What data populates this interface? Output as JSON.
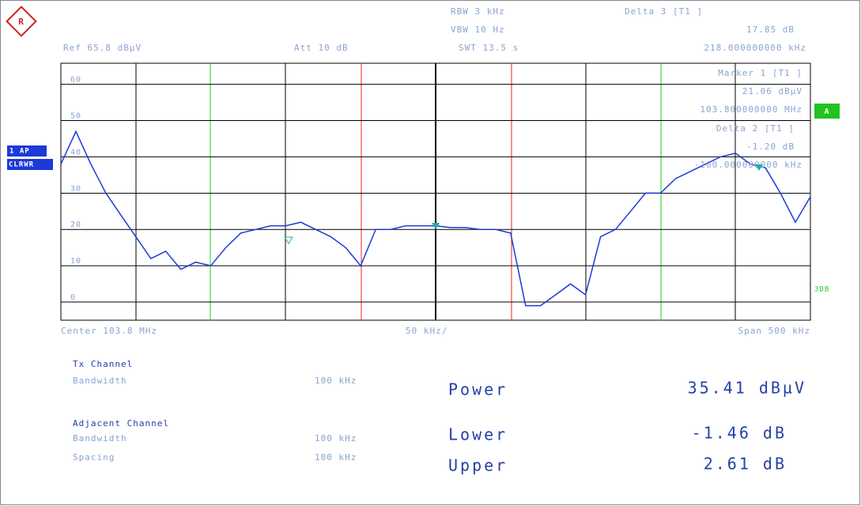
{
  "header": {
    "rbw": "RBW 3 kHz",
    "vbw": "VBW 10 Hz",
    "swt": "SWT 13.5 s",
    "ref": "Ref 65.8 dBµV",
    "att": "Att 10 dB"
  },
  "markers": [
    {
      "label": "Delta 3 [T1 ]",
      "level": "17.85 dB",
      "position": "218.000000000 kHz"
    },
    {
      "label": "Marker 1 [T1 ]",
      "level": "21.06 dBµV",
      "position": "103.800000000 MHz"
    },
    {
      "label": "Delta 2 [T1 ]",
      "level": "-1.20 dB",
      "position": "-100.000000000 kHz"
    }
  ],
  "side": {
    "trace": "1 AP",
    "mode": "CLRWR",
    "a": "A",
    "db3": "3DB"
  },
  "axis": {
    "center": "Center 103.8 MHz",
    "div": "50 kHz/",
    "span": "Span 500 kHz"
  },
  "chart_data": {
    "type": "line",
    "color": "#1c3ad8",
    "x": [
      -250,
      -240,
      -230,
      -220,
      -210,
      -200,
      -190,
      -180,
      -170,
      -160,
      -150,
      -140,
      -130,
      -120,
      -110,
      -100,
      -90,
      -80,
      -70,
      -60,
      -50,
      -40,
      -30,
      -20,
      -10,
      0,
      10,
      20,
      30,
      40,
      50,
      60,
      70,
      80,
      90,
      100,
      110,
      120,
      130,
      140,
      150,
      160,
      170,
      180,
      190,
      200,
      210,
      220,
      230,
      240,
      250
    ],
    "values": [
      38,
      47,
      38,
      30,
      24,
      18,
      12,
      14,
      9,
      11,
      10,
      15,
      19,
      20,
      21,
      21,
      22,
      20,
      18,
      15,
      10,
      20,
      20,
      21,
      21,
      21,
      20.5,
      20.5,
      20,
      20,
      19,
      -1,
      -1,
      2,
      5,
      2,
      18,
      20,
      25,
      30,
      30,
      34,
      36,
      38,
      40,
      41,
      38,
      37,
      30,
      22,
      29
    ],
    "xlim": [
      -250,
      250
    ],
    "ylim": [
      -5,
      65.8
    ],
    "yticks": [
      0,
      10,
      20,
      30,
      40,
      50,
      60
    ],
    "grid": true
  },
  "settings": {
    "tx_title": "Tx Channel",
    "tx_bw_label": "Bandwidth",
    "tx_bw": "100 kHz",
    "adj_title": "Adjacent Channel",
    "adj_bw_label": "Bandwidth",
    "adj_bw": "100 kHz",
    "adj_sp_label": "Spacing",
    "adj_sp": "100 kHz"
  },
  "results": {
    "power_label": "Power",
    "power": "35.41 dBµV",
    "lower_label": "Lower",
    "lower": "-1.46 dB",
    "upper_label": "Upper",
    "upper": "2.61 dB"
  }
}
